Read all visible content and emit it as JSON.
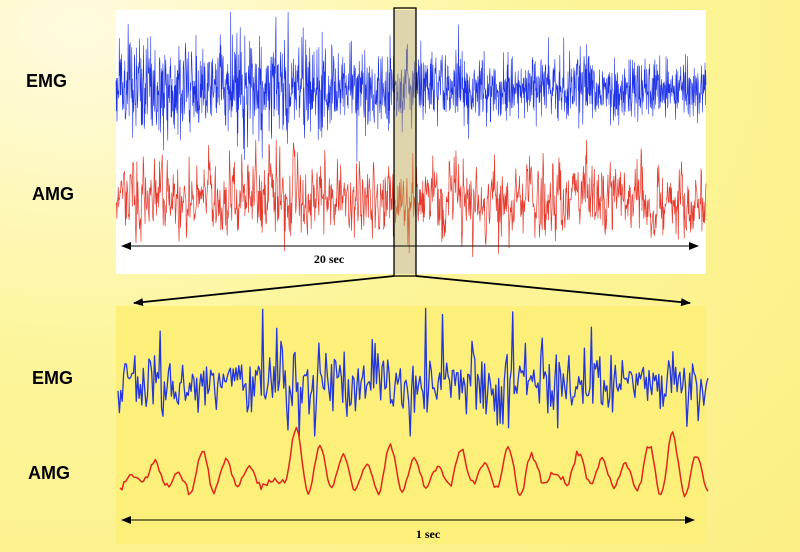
{
  "chart_data": [
    {
      "type": "line",
      "panel": "top",
      "series": [
        {
          "name": "EMG",
          "color": "#1f33e6",
          "amplitude_profile": [
            1.0,
            1.05,
            0.95,
            1.1,
            1.0,
            0.9,
            0.95,
            0.7,
            0.65,
            0.7,
            0.75,
            0.7,
            0.65,
            0.6,
            0.65
          ]
        },
        {
          "name": "AMG",
          "color": "#e53a2c",
          "amplitude_profile": [
            1.0,
            0.9,
            0.8,
            1.05,
            1.1,
            0.85,
            0.9,
            1.0,
            0.95,
            1.05,
            0.95,
            0.9,
            1.0,
            0.85,
            0.9
          ]
        }
      ],
      "duration_label": "20 sec",
      "highlight_window": "1 sec segment enlarged below"
    },
    {
      "type": "line",
      "panel": "bottom",
      "series": [
        {
          "name": "EMG",
          "color": "#2335dc"
        },
        {
          "name": "AMG",
          "color": "#e0271b",
          "peaks": [
            0.28,
            0.42,
            0.3,
            0.55,
            0.45,
            0.38,
            0.22,
            0.8,
            0.6,
            0.5,
            0.4,
            0.62,
            0.48,
            0.35,
            0.55,
            0.42,
            0.58,
            0.5,
            0.3,
            0.52,
            0.45,
            0.4,
            0.6,
            0.75,
            0.5
          ]
        }
      ],
      "duration_label": "1 sec"
    }
  ],
  "labels": {
    "top_emg": "EMG",
    "top_amg": "AMG",
    "bottom_emg": "EMG",
    "bottom_amg": "AMG",
    "top_duration": "20 sec",
    "bottom_duration": "1 sec"
  },
  "colors": {
    "background": "#fdf59a",
    "top_panel": "#ffffff",
    "bottom_panel": "#fcf07a",
    "emg": "#1f33e6",
    "amg": "#e53a2c",
    "highlight": "#c9b94a"
  }
}
